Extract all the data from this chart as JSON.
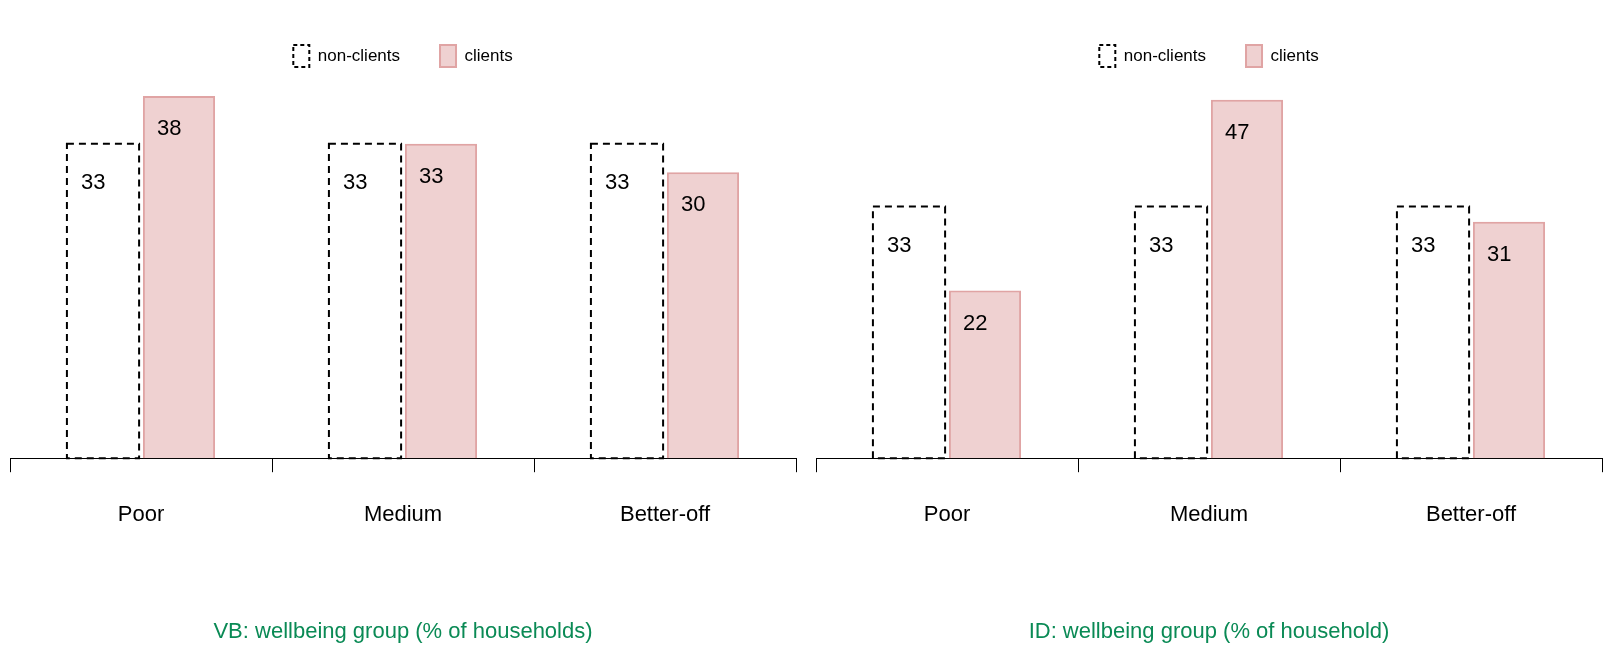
{
  "chart_data": [
    {
      "type": "bar",
      "xlabel": "VB: wellbeing group (% of households)",
      "categories": [
        "Poor",
        "Medium",
        "Better-off"
      ],
      "series": [
        {
          "name": "non-clients",
          "color": "#000000",
          "values": [
            33,
            33,
            33
          ]
        },
        {
          "name": "clients",
          "color": "#e0a4a4",
          "values": [
            38,
            33,
            30
          ]
        }
      ],
      "data_labels": true,
      "legend": "top"
    },
    {
      "type": "bar",
      "xlabel": "ID: wellbeing group (% of household)",
      "categories": [
        "Poor",
        "Medium",
        "Better-off"
      ],
      "series": [
        {
          "name": "non-clients",
          "color": "#000000",
          "values": [
            33,
            33,
            33
          ]
        },
        {
          "name": "clients",
          "color": "#e0a4a4",
          "values": [
            22,
            47,
            31
          ]
        }
      ],
      "data_labels": true,
      "legend": "top"
    }
  ]
}
